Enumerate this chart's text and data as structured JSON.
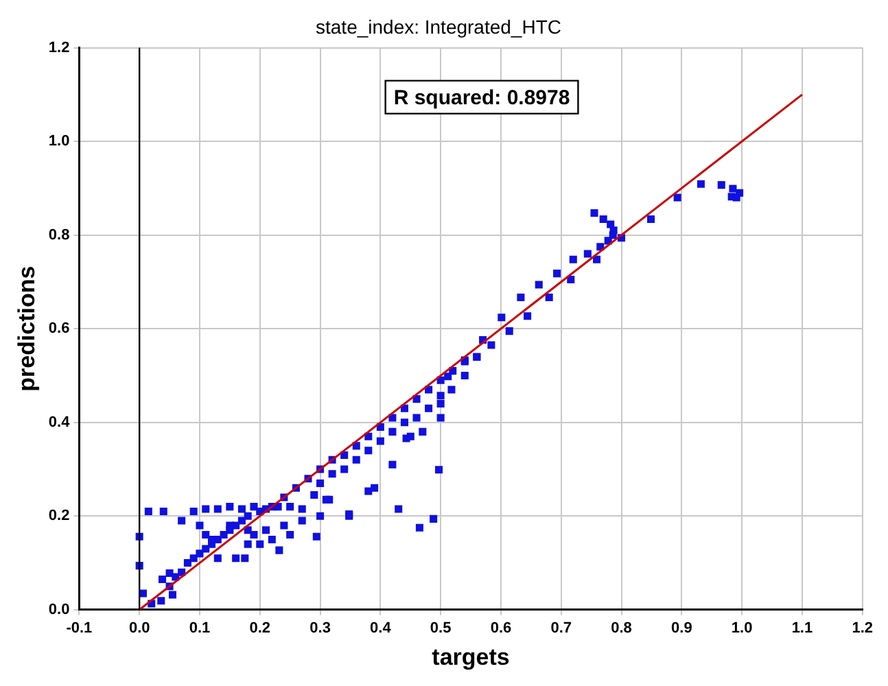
{
  "chart_data": {
    "type": "scatter",
    "title": "state_index: Integrated_HTC",
    "xlabel": "targets",
    "ylabel": "predictions",
    "xlim": [
      -0.1,
      1.2
    ],
    "ylim": [
      0,
      1.2
    ],
    "xticks": [
      -0.1,
      {
        "value": 0,
        "label": "0.0"
      },
      0.1,
      0.2,
      0.3,
      0.4,
      0.5,
      0.6,
      0.7,
      0.8,
      0.9,
      {
        "value": 1,
        "label": "1.0"
      },
      1.1,
      1.2
    ],
    "yticks": [
      {
        "value": 0,
        "label": "0.0"
      },
      0.2,
      0.4,
      0.6,
      0.8,
      {
        "value": 1,
        "label": "1.0"
      },
      1.2
    ],
    "grid": true,
    "legend": false,
    "annotations": [
      "R squared: 0.8978"
    ],
    "ref_lines": [
      {
        "axis": "x",
        "value": 0,
        "color": "#000000"
      }
    ],
    "series": [
      {
        "marker": "square",
        "color": "#1010e0",
        "x": [
          0,
          0,
          0.015,
          0.04,
          0.006,
          0.02,
          0.036,
          0.055,
          0.05,
          0.038,
          0.07,
          0.13,
          0.16,
          0.175,
          0.232,
          0.294,
          0.348,
          0.31,
          0.5,
          0.443,
          0.42,
          0.497,
          0.39,
          0.38,
          0.348,
          0.43,
          0.465,
          0.488,
          0.315,
          0.29,
          0.518,
          0.54,
          0.56,
          0.54,
          0.755,
          0.77,
          0.782,
          0.787,
          0.786,
          0.778,
          0.8,
          0.849,
          0.765,
          0.744,
          0.759,
          0.72,
          0.693,
          0.716,
          0.663,
          0.68,
          0.633,
          0.644,
          0.601,
          0.614,
          0.57,
          0.584,
          0.54,
          0.56,
          0.512,
          0.5,
          0.893,
          0.932,
          0.966,
          0.985,
          0.996,
          0.983,
          0.991,
          0.05,
          0.06,
          0.07,
          0.08,
          0.09,
          0.1,
          0.11,
          0.12,
          0.13,
          0.14,
          0.15,
          0.16,
          0.17,
          0.18,
          0.2,
          0.22,
          0.24,
          0.26,
          0.28,
          0.3,
          0.32,
          0.34,
          0.36,
          0.38,
          0.4,
          0.42,
          0.44,
          0.46,
          0.48,
          0.5,
          0.52,
          0.3,
          0.32,
          0.34,
          0.36,
          0.38,
          0.4,
          0.42,
          0.44,
          0.46,
          0.48,
          0.5,
          0.47,
          0.45,
          0.09,
          0.11,
          0.13,
          0.15,
          0.17,
          0.19,
          0.21,
          0.23,
          0.25,
          0.27,
          0.15,
          0.18,
          0.21,
          0.24,
          0.27,
          0.3,
          0.22,
          0.2,
          0.25,
          0.1,
          0.11,
          0.12,
          0.19,
          0.18
        ],
        "values": [
          0.156,
          0.094,
          0.21,
          0.21,
          0.035,
          0.013,
          0.019,
          0.032,
          0.078,
          0.065,
          0.19,
          0.11,
          0.11,
          0.11,
          0.127,
          0.156,
          0.204,
          0.235,
          0.41,
          0.366,
          0.31,
          0.299,
          0.26,
          0.253,
          0.2,
          0.215,
          0.175,
          0.194,
          0.235,
          0.245,
          0.47,
          0.5,
          0.54,
          0.53,
          0.847,
          0.834,
          0.823,
          0.81,
          0.8,
          0.788,
          0.794,
          0.834,
          0.775,
          0.76,
          0.748,
          0.748,
          0.718,
          0.705,
          0.694,
          0.667,
          0.667,
          0.627,
          0.624,
          0.595,
          0.576,
          0.565,
          0.533,
          0.54,
          0.498,
          0.457,
          0.88,
          0.909,
          0.907,
          0.899,
          0.89,
          0.882,
          0.88,
          0.05,
          0.07,
          0.08,
          0.1,
          0.11,
          0.12,
          0.13,
          0.14,
          0.15,
          0.16,
          0.17,
          0.18,
          0.19,
          0.2,
          0.21,
          0.22,
          0.24,
          0.26,
          0.28,
          0.3,
          0.32,
          0.33,
          0.35,
          0.37,
          0.39,
          0.41,
          0.43,
          0.45,
          0.47,
          0.49,
          0.51,
          0.27,
          0.29,
          0.3,
          0.32,
          0.34,
          0.36,
          0.38,
          0.4,
          0.41,
          0.43,
          0.44,
          0.38,
          0.37,
          0.21,
          0.215,
          0.215,
          0.22,
          0.215,
          0.22,
          0.215,
          0.22,
          0.22,
          0.215,
          0.18,
          0.17,
          0.17,
          0.18,
          0.19,
          0.2,
          0.15,
          0.14,
          0.16,
          0.18,
          0.16,
          0.15,
          0.16,
          0.14
        ]
      },
      {
        "type": "line",
        "marker": "none",
        "color": "#cc0000",
        "x": [
          0,
          1.1
        ],
        "values": [
          0,
          1.1
        ]
      }
    ]
  }
}
